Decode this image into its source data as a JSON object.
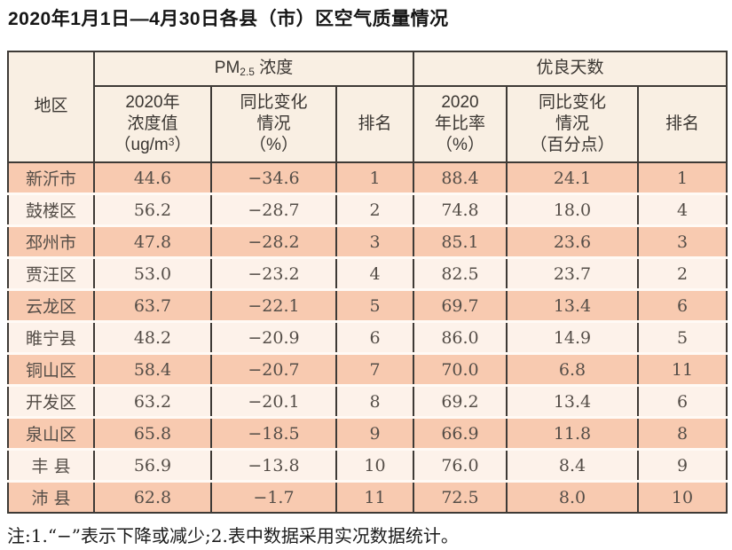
{
  "chart_data": {
    "type": "table",
    "title": "2020年1月1日—4月30日各县（市）区空气质量情况",
    "note": "注:1.“−”表示下降或减少;2.表中数据采用实况数据统计。",
    "column_groups": [
      {
        "label": "PM2.5浓度",
        "span": 3
      },
      {
        "label": "优良天数",
        "span": 3
      }
    ],
    "columns": [
      "地区",
      "2020年浓度值（ug/m3）",
      "同比变化情况（%）",
      "排名",
      "2020年比率（%）",
      "同比变化情况（百分点）",
      "排名"
    ],
    "rows": [
      [
        "新沂市",
        "44.6",
        "−34.6",
        "1",
        "88.4",
        "24.1",
        "1"
      ],
      [
        "鼓楼区",
        "56.2",
        "−28.7",
        "2",
        "74.8",
        "18.0",
        "4"
      ],
      [
        "邳州市",
        "47.8",
        "−28.2",
        "3",
        "85.1",
        "23.6",
        "3"
      ],
      [
        "贾汪区",
        "53.0",
        "−23.2",
        "4",
        "82.5",
        "23.7",
        "2"
      ],
      [
        "云龙区",
        "63.7",
        "−22.1",
        "5",
        "69.7",
        "13.4",
        "6"
      ],
      [
        "睢宁县",
        "48.2",
        "−20.9",
        "6",
        "86.0",
        "14.9",
        "5"
      ],
      [
        "铜山区",
        "58.4",
        "−20.7",
        "7",
        "70.0",
        "6.8",
        "11"
      ],
      [
        "开发区",
        "63.2",
        "−20.1",
        "8",
        "69.2",
        "13.4",
        "6"
      ],
      [
        "泉山区",
        "65.8",
        "−18.5",
        "9",
        "66.9",
        "11.8",
        "8"
      ],
      [
        "丰 县",
        "56.9",
        "−13.8",
        "10",
        "76.0",
        "8.4",
        "9"
      ],
      [
        "沛 县",
        "62.8",
        "−1.7",
        "11",
        "72.5",
        "8.0",
        "10"
      ]
    ]
  },
  "header": {
    "region": "地区",
    "pm25_prefix": "PM",
    "pm25_sub": "2.5",
    "pm25_suffix": " 浓度",
    "good_days": "优良天数",
    "conc_l1": "2020年",
    "conc_l2": "浓度值",
    "conc_l3a": "（ug/m",
    "conc_sup": "3",
    "conc_l3b": "）",
    "change_l1": "同比变化",
    "change_l2": "情况",
    "pm_change_unit": "（%）",
    "rank": "排名",
    "ratio_l1": "2020",
    "ratio_l2": "年比率",
    "ratio_unit": "（%）",
    "gd_change_unit": "（百分点）"
  },
  "colors": {
    "row_dark": "#f8cab0",
    "row_light": "#fdf2ea",
    "row_separator": "#fffaf5",
    "header_bg": "#f9efe3",
    "grid_border": "#3e3a36",
    "data_text": "#544d47",
    "header_text": "#3a3632",
    "title_text": "#161616"
  }
}
